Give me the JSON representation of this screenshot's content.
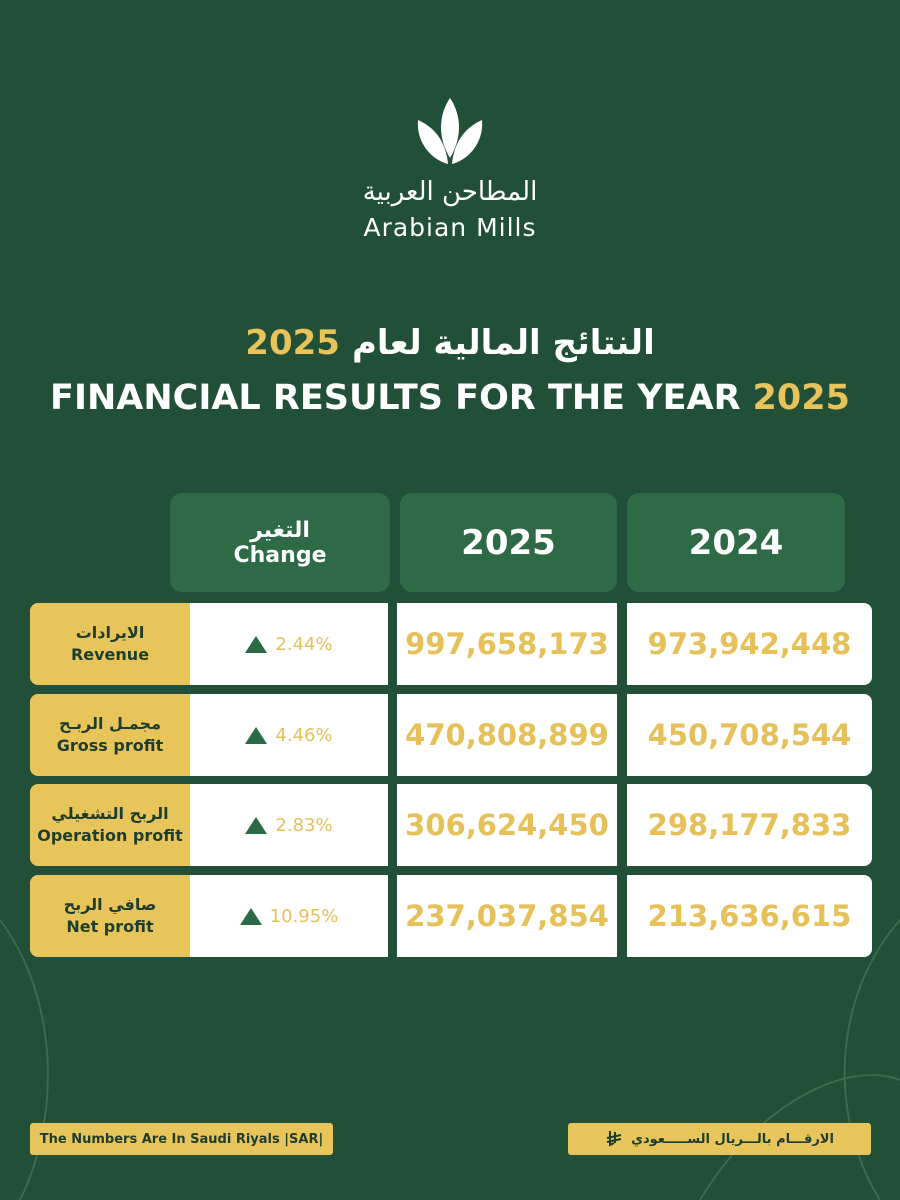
{
  "logo": {
    "name_ar": "المطاحن العربية",
    "name_en": "Arabian Mills"
  },
  "title": {
    "ar_text": "النتائج المالية لعام",
    "ar_year": "2025",
    "en_text": "FINANCIAL RESULTS FOR THE YEAR",
    "en_year": "2025"
  },
  "table": {
    "header": {
      "change_ar": "التغير",
      "change_en": "Change",
      "col_1": "2025",
      "col_2": "2024"
    },
    "rows": [
      {
        "label_ar": "الايرادات",
        "label_en": "Revenue",
        "change": "2.44%",
        "col_1": "997,658,173",
        "col_2": "973,942,448"
      },
      {
        "label_ar": "مجمـل الربـح",
        "label_en": "Gross profit",
        "change": "4.46%",
        "col_1": "470,808,899",
        "col_2": "450,708,544"
      },
      {
        "label_ar": "الربح التشغيلي",
        "label_en": "Operation profit",
        "change": "2.83%",
        "col_1": "306,624,450",
        "col_2": "298,177,833"
      },
      {
        "label_ar": "صافي الربح",
        "label_en": "Net profit",
        "change": "10.95%",
        "col_1": "237,037,854",
        "col_2": "213,636,615"
      }
    ]
  },
  "footer": {
    "note_en": "The Numbers Are In Saudi Riyals |SAR|",
    "note_ar": "الارقـــام بالـــريال الســـــعودي"
  }
}
